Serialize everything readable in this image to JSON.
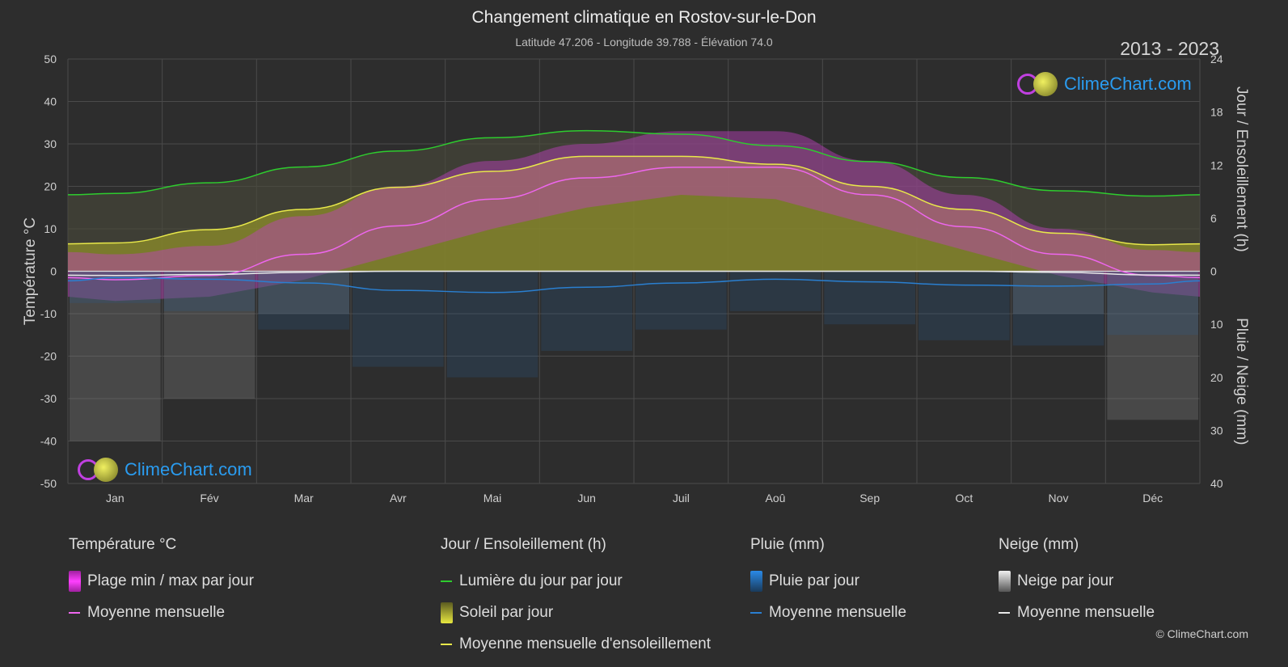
{
  "header": {
    "title": "Changement climatique en Rostov-sur-le-Don",
    "subtitle": "Latitude 47.206 - Longitude 39.788 - Élévation 74.0",
    "years": "2013 - 2023"
  },
  "logo_text": "ClimeChart.com",
  "copyright": "© ClimeChart.com",
  "axes": {
    "left_title": "Température °C",
    "right_top_title": "Jour / Ensoleillement (h)",
    "right_bottom_title": "Pluie / Neige (mm)",
    "left_ticks": [
      "50",
      "40",
      "30",
      "20",
      "10",
      "0",
      "-10",
      "-20",
      "-30",
      "-40",
      "-50"
    ],
    "right_top_ticks": [
      "24",
      "18",
      "12",
      "6",
      "0"
    ],
    "right_bottom_ticks": [
      "10",
      "20",
      "30",
      "40"
    ],
    "months": [
      "Jan",
      "Fév",
      "Mar",
      "Avr",
      "Mai",
      "Jun",
      "Juil",
      "Aoû",
      "Sep",
      "Oct",
      "Nov",
      "Déc"
    ]
  },
  "legend": {
    "temp": {
      "title": "Température °C",
      "range": "Plage min / max par jour",
      "mean": "Moyenne mensuelle"
    },
    "sun": {
      "title": "Jour / Ensoleillement (h)",
      "daylight": "Lumière du jour par jour",
      "sunshine": "Soleil par jour",
      "sun_mean": "Moyenne mensuelle d'ensoleillement"
    },
    "rain": {
      "title": "Pluie (mm)",
      "daily": "Pluie par jour",
      "mean": "Moyenne mensuelle"
    },
    "snow": {
      "title": "Neige (mm)",
      "daily": "Neige par jour",
      "mean": "Moyenne mensuelle"
    }
  },
  "colors": {
    "background": "#2d2d2d",
    "daylight": "#2ecc2e",
    "sunshine_mean": "#e8e84a",
    "sunshine_fill": "#8f8f2a",
    "temp_mean": "#ee66ee",
    "temp_range": "#c040c0",
    "rain": "#2a7fd0",
    "snow": "#e8e8e8",
    "logo": "#2a9cf0"
  },
  "chart_data": {
    "type": "area",
    "x": [
      "Jan",
      "Fév",
      "Mar",
      "Avr",
      "Mai",
      "Jun",
      "Juil",
      "Aoû",
      "Sep",
      "Oct",
      "Nov",
      "Déc"
    ],
    "series": [
      {
        "name": "Lumière du jour par jour",
        "axis": "hours",
        "values": [
          8.8,
          10.0,
          11.8,
          13.6,
          15.1,
          15.9,
          15.5,
          14.2,
          12.4,
          10.6,
          9.1,
          8.5
        ]
      },
      {
        "name": "Moyenne mensuelle d'ensoleillement",
        "axis": "hours",
        "values": [
          3.2,
          4.7,
          7.0,
          9.5,
          11.3,
          13.0,
          13.0,
          12.1,
          9.6,
          7.0,
          4.3,
          3.0
        ]
      },
      {
        "name": "Moyenne mensuelle",
        "axis": "temperature",
        "values": [
          -2.0,
          -1.0,
          4.0,
          10.7,
          17.0,
          22.0,
          24.5,
          24.5,
          18.0,
          10.5,
          4.0,
          -1.0
        ]
      },
      {
        "name": "Plage min / max par jour (max)",
        "axis": "temperature",
        "values": [
          4,
          6,
          13,
          20,
          26,
          30,
          33,
          33,
          26,
          18,
          10,
          5
        ]
      },
      {
        "name": "Plage min / max par jour (min)",
        "axis": "temperature",
        "values": [
          -7,
          -6,
          -2,
          4,
          10,
          15,
          18,
          17,
          11,
          5,
          -1,
          -5
        ]
      },
      {
        "name": "Pluie moyenne mensuelle",
        "axis": "precipitation",
        "values": [
          1.2,
          1.5,
          2.2,
          3.6,
          4.0,
          3.0,
          2.2,
          1.5,
          2.0,
          2.6,
          2.8,
          2.4
        ]
      },
      {
        "name": "Neige moyenne mensuelle",
        "axis": "precipitation",
        "values": [
          0.8,
          0.6,
          0.2,
          0,
          0,
          0,
          0,
          0,
          0,
          0,
          0.2,
          0.7
        ]
      }
    ],
    "ylim_temperature": [
      -50,
      50
    ],
    "ylim_hours": [
      0,
      24
    ],
    "ylim_precipitation": [
      0,
      40
    ],
    "grid": true
  }
}
